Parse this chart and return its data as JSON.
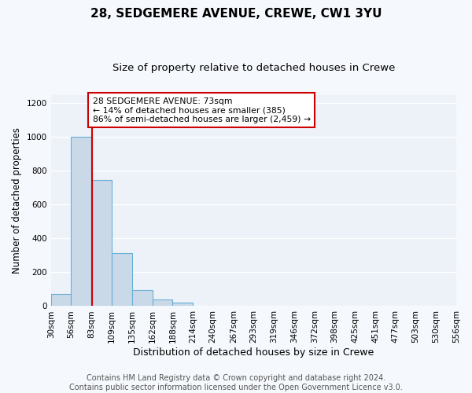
{
  "title": "28, SEDGEMERE AVENUE, CREWE, CW1 3YU",
  "subtitle": "Size of property relative to detached houses in Crewe",
  "xlabel": "Distribution of detached houses by size in Crewe",
  "ylabel": "Number of detached properties",
  "bin_edges": [
    30,
    56,
    83,
    109,
    135,
    162,
    188,
    214,
    240,
    267,
    293,
    319,
    346,
    372,
    398,
    425,
    451,
    477,
    503,
    530,
    556
  ],
  "bar_heights": [
    70,
    1000,
    745,
    315,
    95,
    40,
    20,
    0,
    0,
    0,
    0,
    0,
    0,
    0,
    0,
    0,
    0,
    0,
    0,
    0
  ],
  "bar_color": "#c9d9e8",
  "bar_edge_color": "#6aaed6",
  "property_bin_edge": 83,
  "vline_color": "#cc0000",
  "annotation_text": "28 SEDGEMERE AVENUE: 73sqm\n← 14% of detached houses are smaller (385)\n86% of semi-detached houses are larger (2,459) →",
  "annotation_box_color": "#ffffff",
  "annotation_box_edge_color": "#cc0000",
  "ylim": [
    0,
    1250
  ],
  "yticks": [
    0,
    200,
    400,
    600,
    800,
    1000,
    1200
  ],
  "tick_labels": [
    "30sqm",
    "56sqm",
    "83sqm",
    "109sqm",
    "135sqm",
    "162sqm",
    "188sqm",
    "214sqm",
    "240sqm",
    "267sqm",
    "293sqm",
    "319sqm",
    "346sqm",
    "372sqm",
    "398sqm",
    "425sqm",
    "451sqm",
    "477sqm",
    "503sqm",
    "530sqm",
    "556sqm"
  ],
  "footer_text": "Contains HM Land Registry data © Crown copyright and database right 2024.\nContains public sector information licensed under the Open Government Licence v3.0.",
  "figure_bg_color": "#f5f8fc",
  "plot_bg_color": "#edf2f9",
  "grid_color": "#ffffff",
  "title_fontsize": 11,
  "subtitle_fontsize": 9.5,
  "xlabel_fontsize": 9,
  "ylabel_fontsize": 8.5,
  "tick_fontsize": 7.5,
  "footer_fontsize": 7
}
